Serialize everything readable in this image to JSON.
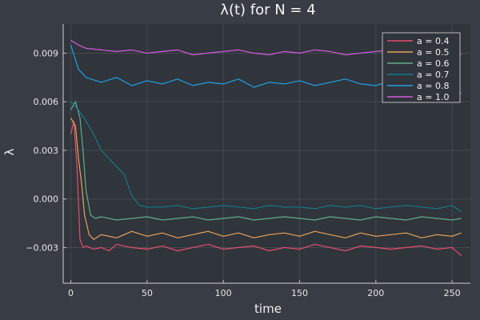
{
  "chart_data": {
    "type": "line",
    "title": "λ(t) for N = 4",
    "xlabel": "time",
    "ylabel": "λ",
    "xlim": [
      -5,
      262
    ],
    "ylim": [
      -0.0052,
      0.0108
    ],
    "xticks": [
      0,
      50,
      100,
      150,
      200,
      250
    ],
    "xtick_labels": [
      "0",
      "50",
      "100",
      "150",
      "200",
      "250"
    ],
    "yticks": [
      -0.003,
      0.0,
      0.003,
      0.006,
      0.009
    ],
    "ytick_labels": [
      "−0.003",
      "0.000",
      "0.003",
      "0.006",
      "0.009"
    ],
    "grid": true,
    "legend_position": "top-right",
    "background": "#30343b",
    "series": [
      {
        "name": "a = 0.4",
        "color": "#e64f6a",
        "x": [
          0,
          2,
          4,
          6,
          8,
          10,
          15,
          20,
          25,
          30,
          40,
          50,
          60,
          70,
          80,
          90,
          100,
          110,
          120,
          130,
          140,
          150,
          160,
          170,
          180,
          190,
          200,
          210,
          220,
          230,
          240,
          250,
          256
        ],
        "y": [
          0.004,
          0.0048,
          0.002,
          -0.0025,
          -0.003,
          -0.0029,
          -0.0031,
          -0.003,
          -0.0032,
          -0.0028,
          -0.003,
          -0.0031,
          -0.0029,
          -0.0032,
          -0.003,
          -0.0028,
          -0.0031,
          -0.003,
          -0.0029,
          -0.0032,
          -0.003,
          -0.0031,
          -0.0028,
          -0.003,
          -0.0032,
          -0.0029,
          -0.003,
          -0.0031,
          -0.003,
          -0.0029,
          -0.0031,
          -0.003,
          -0.0035
        ]
      },
      {
        "name": "a = 0.5",
        "color": "#e6a35a",
        "x": [
          0,
          3,
          5,
          7,
          9,
          12,
          15,
          20,
          30,
          40,
          50,
          60,
          70,
          80,
          90,
          100,
          110,
          120,
          130,
          140,
          150,
          160,
          170,
          180,
          190,
          200,
          210,
          220,
          230,
          240,
          250,
          256
        ],
        "y": [
          0.005,
          0.0045,
          0.0025,
          0.001,
          -0.001,
          -0.0022,
          -0.0025,
          -0.0022,
          -0.0024,
          -0.002,
          -0.0023,
          -0.0021,
          -0.0024,
          -0.0022,
          -0.002,
          -0.0023,
          -0.0021,
          -0.0024,
          -0.0022,
          -0.0021,
          -0.0023,
          -0.002,
          -0.0022,
          -0.0024,
          -0.0021,
          -0.0023,
          -0.0022,
          -0.0021,
          -0.0024,
          -0.0022,
          -0.0023,
          -0.0021
        ]
      },
      {
        "name": "a = 0.6",
        "color": "#5fae8b",
        "x": [
          0,
          3,
          6,
          8,
          10,
          13,
          16,
          20,
          30,
          40,
          50,
          60,
          70,
          80,
          90,
          100,
          110,
          120,
          130,
          140,
          150,
          160,
          170,
          180,
          190,
          200,
          210,
          220,
          230,
          240,
          250,
          256
        ],
        "y": [
          0.0055,
          0.006,
          0.005,
          0.003,
          0.0005,
          -0.001,
          -0.0012,
          -0.0011,
          -0.0013,
          -0.0012,
          -0.0011,
          -0.0013,
          -0.0012,
          -0.0011,
          -0.0013,
          -0.0012,
          -0.0011,
          -0.0013,
          -0.0012,
          -0.0011,
          -0.0012,
          -0.0013,
          -0.0011,
          -0.0012,
          -0.0013,
          -0.0011,
          -0.0012,
          -0.0013,
          -0.0011,
          -0.0012,
          -0.0013,
          -0.0012
        ]
      },
      {
        "name": "a = 0.7",
        "color": "#117a8b",
        "x": [
          0,
          5,
          10,
          15,
          20,
          25,
          30,
          35,
          40,
          45,
          50,
          60,
          70,
          80,
          90,
          100,
          110,
          120,
          130,
          140,
          150,
          160,
          170,
          180,
          190,
          200,
          210,
          220,
          230,
          240,
          250,
          256
        ],
        "y": [
          0.006,
          0.0055,
          0.0048,
          0.004,
          0.003,
          0.0025,
          0.002,
          0.0015,
          0.0002,
          -0.0004,
          -0.0005,
          -0.0005,
          -0.0004,
          -0.0006,
          -0.0005,
          -0.0004,
          -0.0005,
          -0.0006,
          -0.0004,
          -0.0005,
          -0.0005,
          -0.0006,
          -0.0004,
          -0.0005,
          -0.0004,
          -0.0006,
          -0.0005,
          -0.0004,
          -0.0005,
          -0.0006,
          -0.0004,
          -0.0008
        ]
      },
      {
        "name": "a = 0.8",
        "color": "#1fa0e6",
        "x": [
          0,
          5,
          10,
          20,
          30,
          40,
          50,
          60,
          70,
          80,
          90,
          100,
          110,
          120,
          130,
          140,
          150,
          160,
          170,
          180,
          190,
          200,
          210,
          220,
          230,
          240,
          250,
          256
        ],
        "y": [
          0.0095,
          0.008,
          0.0075,
          0.0072,
          0.0075,
          0.007,
          0.0073,
          0.0071,
          0.0074,
          0.007,
          0.0072,
          0.0071,
          0.0074,
          0.0069,
          0.0072,
          0.0071,
          0.0073,
          0.007,
          0.0072,
          0.0074,
          0.0071,
          0.007,
          0.0073,
          0.0072,
          0.0071,
          0.0073,
          0.0072,
          0.0065
        ]
      },
      {
        "name": "a = 1.0",
        "color": "#d35ae0",
        "x": [
          0,
          5,
          10,
          20,
          30,
          40,
          50,
          60,
          70,
          80,
          90,
          100,
          110,
          120,
          130,
          140,
          150,
          160,
          170,
          180,
          190,
          200,
          210,
          220,
          230,
          240,
          250,
          256
        ],
        "y": [
          0.0098,
          0.0095,
          0.0093,
          0.0092,
          0.0091,
          0.0092,
          0.009,
          0.0091,
          0.0092,
          0.0089,
          0.009,
          0.0091,
          0.0092,
          0.009,
          0.0089,
          0.0091,
          0.009,
          0.0092,
          0.0091,
          0.0089,
          0.009,
          0.0091,
          0.0092,
          0.009,
          0.0091,
          0.009,
          0.0092,
          0.0089
        ]
      }
    ]
  }
}
